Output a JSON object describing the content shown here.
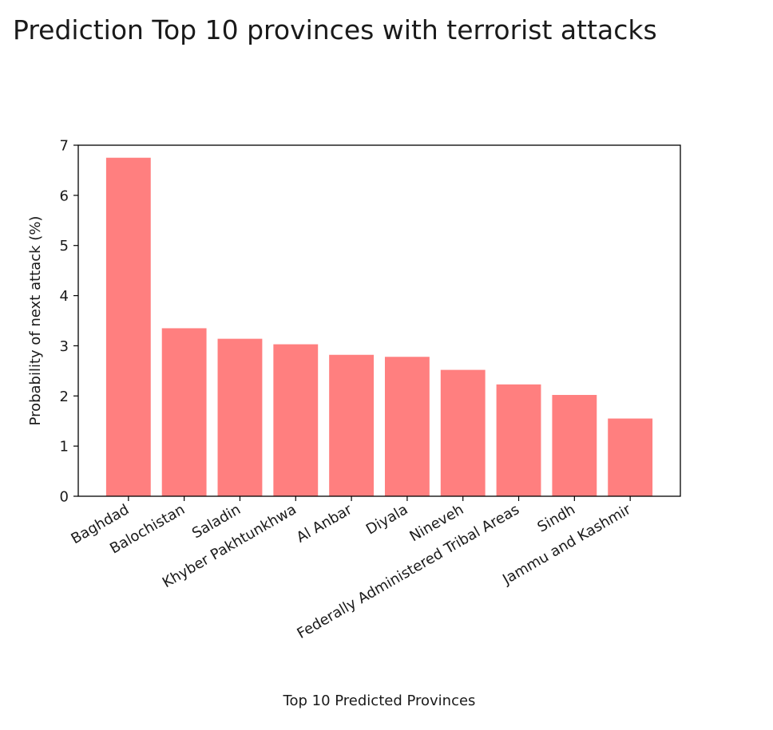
{
  "chart_data": {
    "type": "bar",
    "title": "Prediction Top 10 provinces with terrorist attacks",
    "xlabel": "Top 10 Predicted Provinces",
    "ylabel": "Probability of next attack (%)",
    "categories": [
      "Baghdad",
      "Balochistan",
      "Saladin",
      "Khyber Pakhtunkhwa",
      "Al Anbar",
      "Diyala",
      "Nineveh",
      "Federally Administered Tribal Areas",
      "Sindh",
      "Jammu and Kashmir"
    ],
    "values": [
      6.75,
      3.35,
      3.14,
      3.03,
      2.82,
      2.78,
      2.52,
      2.23,
      2.02,
      1.55
    ],
    "ylim": [
      0,
      7
    ],
    "yticks": [
      0,
      1,
      2,
      3,
      4,
      5,
      6,
      7
    ],
    "bar_color": "#ff7f7f",
    "grid": false
  }
}
